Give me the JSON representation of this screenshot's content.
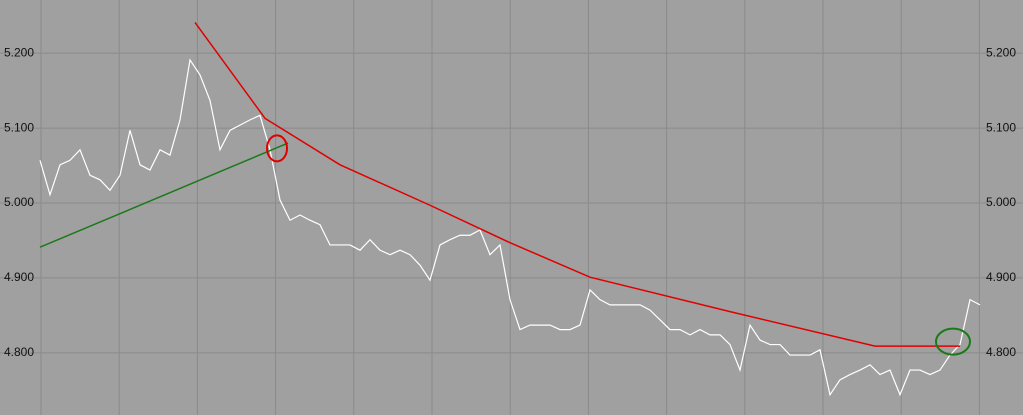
{
  "chart_data": {
    "type": "line",
    "ylim": [
      4.717,
      5.271
    ],
    "yticks": [
      {
        "value": 5.2,
        "label": "5.200"
      },
      {
        "value": 5.1,
        "label": "5.100"
      },
      {
        "value": 5.0,
        "label": "5.000"
      },
      {
        "value": 4.9,
        "label": "4.900"
      },
      {
        "value": 4.8,
        "label": "4.800"
      }
    ],
    "xlim": [
      0,
      94
    ],
    "grid": true,
    "price": {
      "color": "#ffffff",
      "values": [
        5.057,
        5.011,
        5.051,
        5.057,
        5.071,
        5.037,
        5.031,
        5.017,
        5.037,
        5.097,
        5.051,
        5.044,
        5.071,
        5.064,
        5.111,
        5.191,
        5.171,
        5.137,
        5.071,
        5.097,
        5.104,
        5.111,
        5.117,
        5.071,
        5.004,
        4.977,
        4.984,
        4.977,
        4.971,
        4.944,
        4.944,
        4.944,
        4.937,
        4.951,
        4.937,
        4.931,
        4.937,
        4.931,
        4.917,
        4.897,
        4.944,
        4.951,
        4.957,
        4.957,
        4.964,
        4.931,
        4.944,
        4.871,
        4.831,
        4.837,
        4.837,
        4.837,
        4.831,
        4.831,
        4.837,
        4.884,
        4.871,
        4.864,
        4.864,
        4.864,
        4.864,
        4.857,
        4.844,
        4.831,
        4.831,
        4.824,
        4.831,
        4.824,
        4.824,
        4.811,
        4.777,
        4.837,
        4.817,
        4.811,
        4.811,
        4.797,
        4.797,
        4.797,
        4.804,
        4.744,
        4.764,
        4.771,
        4.777,
        4.784,
        4.771,
        4.777,
        4.744,
        4.777,
        4.777,
        4.771,
        4.777,
        4.797,
        4.811,
        4.871,
        4.864
      ]
    },
    "series": [
      {
        "color": "#e00000",
        "x": [
          15.5,
          22.5,
          30,
          39,
          47,
          55,
          69,
          83.5,
          92
        ],
        "values": [
          5.241,
          5.113,
          5.051,
          4.997,
          4.947,
          4.901,
          4.855,
          4.809,
          4.809
        ]
      },
      {
        "color": "#1a7a1a",
        "x": [
          0,
          24.8
        ],
        "values": [
          4.941,
          5.08
        ]
      }
    ],
    "annotations": [
      {
        "x": 23.7,
        "y": 5.073,
        "color": "#e00000"
      },
      {
        "x": 91.3,
        "y": 4.815,
        "color": "#1a7a1a"
      }
    ]
  }
}
